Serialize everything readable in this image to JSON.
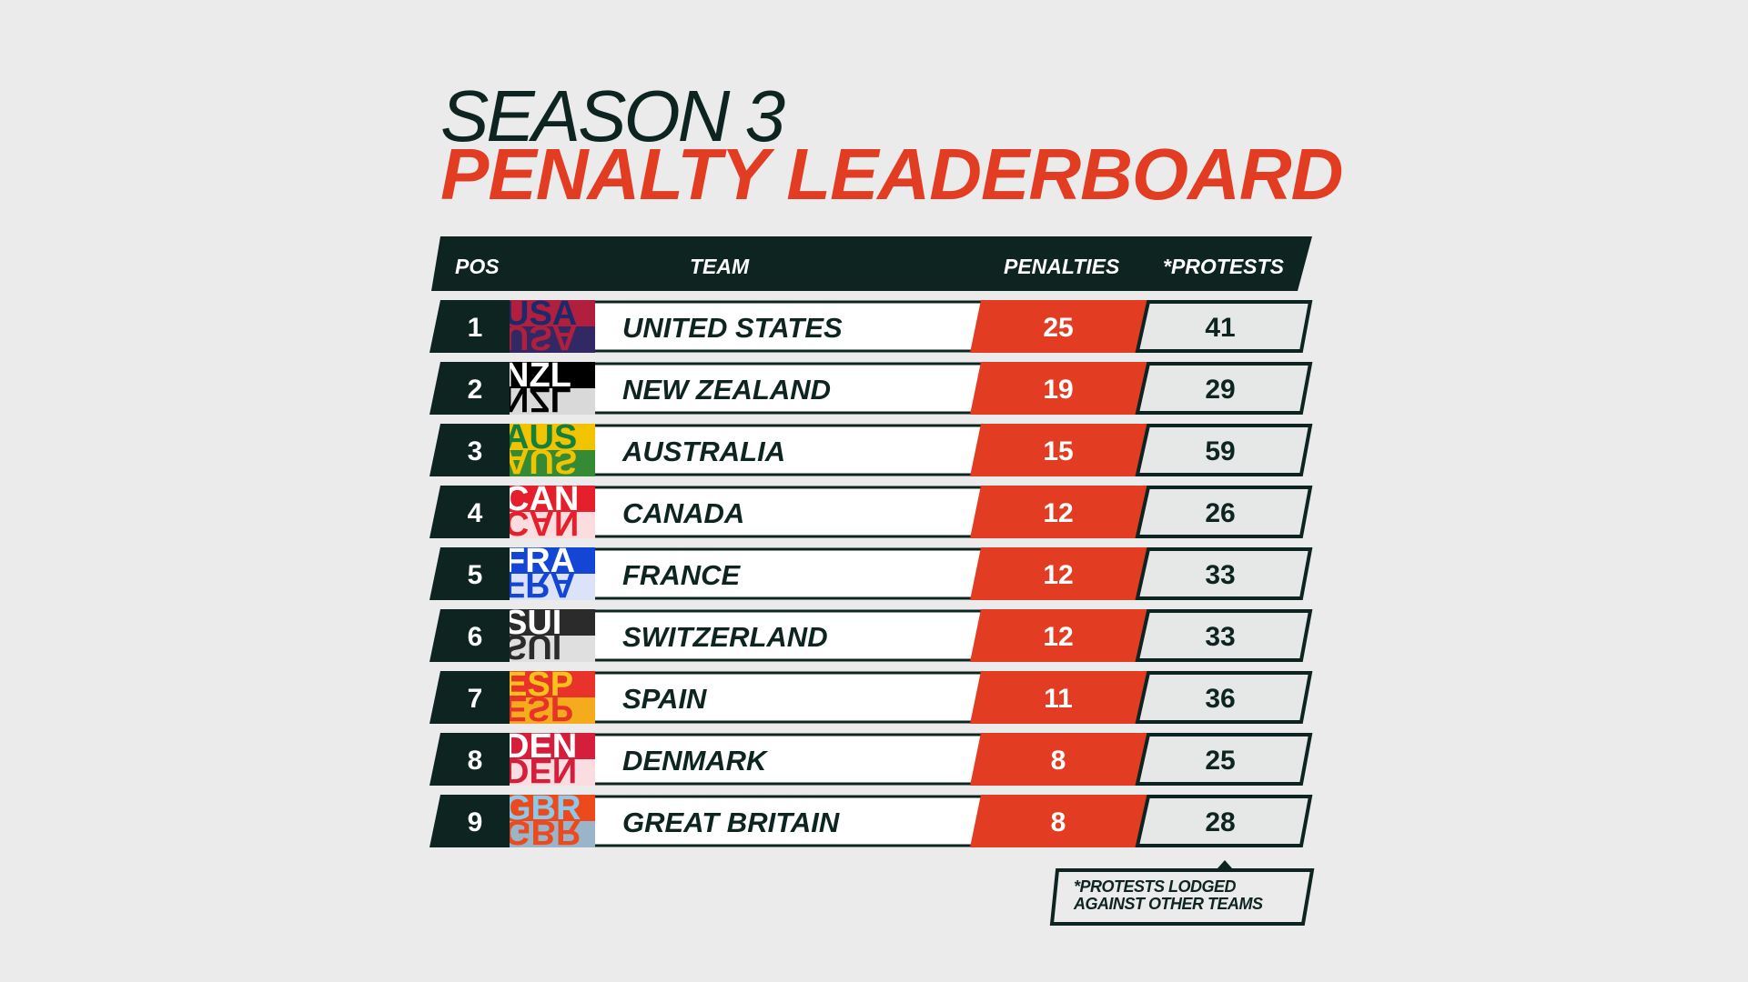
{
  "title": {
    "line1": "SEASON 3",
    "line2": "PENALTY LEADERBOARD"
  },
  "colors": {
    "dark": "#0d2420",
    "accent": "#e23d22",
    "light": "#e6e8e8",
    "white": "#ffffff",
    "background": "#ebebeb"
  },
  "table": {
    "headers": {
      "pos": "POS",
      "team": "TEAM",
      "penalties": "PENALTIES",
      "protests": "*PROTESTS"
    }
  },
  "chart_data": {
    "type": "table",
    "columns": [
      "POS",
      "TEAM",
      "PENALTIES",
      "*PROTESTS"
    ],
    "rows": [
      {
        "pos": "1",
        "team": "UNITED STATES",
        "penalties": 25,
        "protests": 41,
        "flag_label": "USA",
        "flag_colors": [
          "#b01f3d",
          "#1b2a6b"
        ]
      },
      {
        "pos": "2",
        "team": "NEW ZEALAND",
        "penalties": 19,
        "protests": 29,
        "flag_label": "NZL",
        "flag_colors": [
          "#000000",
          "#ffffff"
        ]
      },
      {
        "pos": "3",
        "team": "AUSTRALIA",
        "penalties": 15,
        "protests": 59,
        "flag_label": "AUS",
        "flag_colors": [
          "#f2c400",
          "#13803e"
        ]
      },
      {
        "pos": "4",
        "team": "CANADA",
        "penalties": 12,
        "protests": 26,
        "flag_label": "CAN",
        "flag_colors": [
          "#e5202c",
          "#ffffff"
        ]
      },
      {
        "pos": "5",
        "team": "FRANCE",
        "penalties": 12,
        "protests": 33,
        "flag_label": "FRA",
        "flag_colors": [
          "#1446d6",
          "#ffffff"
        ]
      },
      {
        "pos": "6",
        "team": "SWITZERLAND",
        "penalties": 12,
        "protests": 33,
        "flag_label": "SUI",
        "flag_colors": [
          "#2b2b2b",
          "#ffffff"
        ]
      },
      {
        "pos": "7",
        "team": "SPAIN",
        "penalties": 11,
        "protests": 36,
        "flag_label": "ESP",
        "flag_colors": [
          "#e8322a",
          "#f7c21a"
        ]
      },
      {
        "pos": "8",
        "team": "DENMARK",
        "penalties": 8,
        "protests": 25,
        "flag_label": "DEN",
        "flag_colors": [
          "#d41e3a",
          "#ffffff"
        ]
      },
      {
        "pos": "9",
        "team": "GREAT BRITAIN",
        "penalties": 8,
        "protests": 28,
        "flag_label": "GBR",
        "flag_colors": [
          "#ec4a1c",
          "#8cc8e8"
        ]
      }
    ]
  },
  "footnote": {
    "line1": "*PROTESTS LODGED",
    "line2": "AGAINST OTHER TEAMS"
  }
}
